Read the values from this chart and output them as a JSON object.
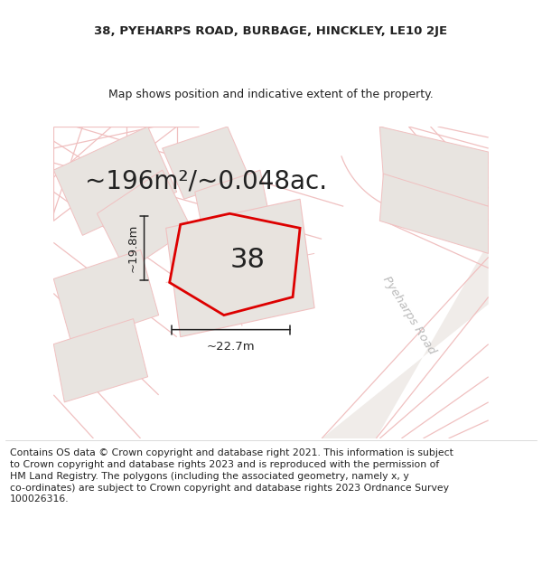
{
  "title_line1": "38, PYEHARPS ROAD, BURBAGE, HINCKLEY, LE10 2JE",
  "title_line2": "Map shows position and indicative extent of the property.",
  "area_text": "~196m²/~0.048ac.",
  "property_number": "38",
  "dim_horizontal": "~22.7m",
  "dim_vertical": "~19.8m",
  "road_label": "Pyeharps Road",
  "footer_text": "Contains OS data © Crown copyright and database right 2021. This information is subject to Crown copyright and database rights 2023 and is reproduced with the permission of HM Land Registry. The polygons (including the associated geometry, namely x, y co-ordinates) are subject to Crown copyright and database rights 2023 Ordnance Survey 100026316.",
  "map_bg": "#f7f4f2",
  "plot_fill_grey": "#e8e4e0",
  "plot_outline_light": "#f0c0c0",
  "property_outline": "#dd0000",
  "text_color": "#222222",
  "dim_color": "#222222",
  "road_text_color": "#bbbbbb",
  "title_fontsize": 9.5,
  "subtitle_fontsize": 9.0,
  "area_fontsize": 20,
  "number_fontsize": 22,
  "road_fontsize": 9.5,
  "footer_fontsize": 7.8
}
